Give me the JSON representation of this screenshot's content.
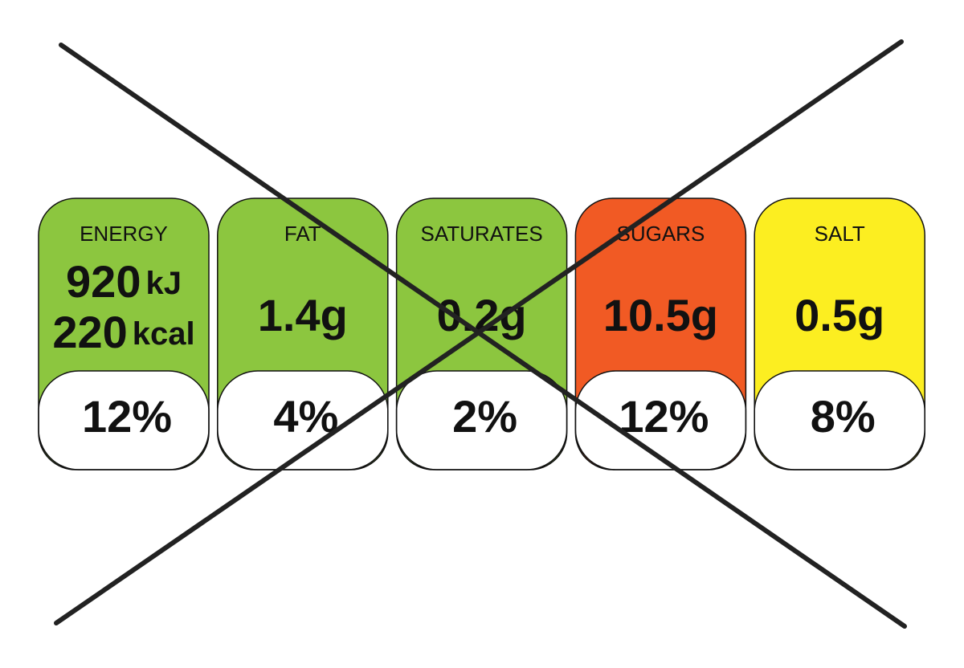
{
  "labels": [
    {
      "name": "ENERGY",
      "color": "#8cc63f",
      "lines": [
        {
          "number": "920",
          "unit": "kJ"
        },
        {
          "number": "220",
          "unit": "kcal"
        }
      ],
      "percent": "12%"
    },
    {
      "name": "FAT",
      "color": "#8cc63f",
      "amount": "1.4g",
      "percent": "4%"
    },
    {
      "name": "SATURATES",
      "color": "#8cc63f",
      "amount": "0.2g",
      "percent": "2%"
    },
    {
      "name": "SUGARS",
      "color": "#f15a24",
      "amount": "10.5g",
      "percent": "12%"
    },
    {
      "name": "SALT",
      "color": "#fcee21",
      "amount": "0.5g",
      "percent": "8%"
    }
  ]
}
